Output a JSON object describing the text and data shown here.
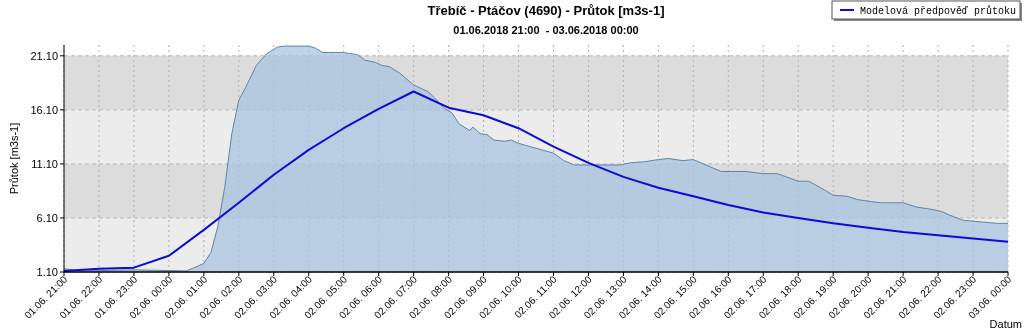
{
  "chart_data": {
    "type": "line",
    "title": "Třebíč - Ptáčov (4690) - Průtok [m3s-1]",
    "subtitle": "01.06.2018 21:00  - 03.06.2018 00:00",
    "xlabel": "Datum",
    "ylabel": "Průtok [m3s-1]",
    "xlim": [
      "2018-06-01T21:00",
      "2018-06-03T00:00"
    ],
    "ylim": [
      1.1,
      22.1
    ],
    "yticks": [
      {
        "value": 1.1,
        "label": "1.10"
      },
      {
        "value": 6.1,
        "label": "6.10"
      },
      {
        "value": 11.1,
        "label": "11.10"
      },
      {
        "value": 16.1,
        "label": "16.10"
      },
      {
        "value": 21.1,
        "label": "21.10"
      }
    ],
    "xticks": [
      {
        "value": "2018-06-01T21:00",
        "label": "01.06. 21:00"
      },
      {
        "value": "2018-06-01T22:00",
        "label": "01.06. 22:00"
      },
      {
        "value": "2018-06-01T23:00",
        "label": "01.06. 23:00"
      },
      {
        "value": "2018-06-02T00:00",
        "label": "02.06. 00:00"
      },
      {
        "value": "2018-06-02T01:00",
        "label": "02.06. 01:00"
      },
      {
        "value": "2018-06-02T02:00",
        "label": "02.06. 02:00"
      },
      {
        "value": "2018-06-02T03:00",
        "label": "02.06. 03:00"
      },
      {
        "value": "2018-06-02T04:00",
        "label": "02.06. 04:00"
      },
      {
        "value": "2018-06-02T05:00",
        "label": "02.06. 05:00"
      },
      {
        "value": "2018-06-02T06:00",
        "label": "02.06. 06:00"
      },
      {
        "value": "2018-06-02T07:00",
        "label": "02.06. 07:00"
      },
      {
        "value": "2018-06-02T08:00",
        "label": "02.06. 08:00"
      },
      {
        "value": "2018-06-02T09:00",
        "label": "02.06. 09:00"
      },
      {
        "value": "2018-06-02T10:00",
        "label": "02.06. 10:00"
      },
      {
        "value": "2018-06-02T11:00",
        "label": "02.06. 11:00"
      },
      {
        "value": "2018-06-02T12:00",
        "label": "02.06. 12:00"
      },
      {
        "value": "2018-06-02T13:00",
        "label": "02.06. 13:00"
      },
      {
        "value": "2018-06-02T14:00",
        "label": "02.06. 14:00"
      },
      {
        "value": "2018-06-02T15:00",
        "label": "02.06. 15:00"
      },
      {
        "value": "2018-06-02T16:00",
        "label": "02.06. 16:00"
      },
      {
        "value": "2018-06-02T17:00",
        "label": "02.06. 17:00"
      },
      {
        "value": "2018-06-02T18:00",
        "label": "02.06. 18:00"
      },
      {
        "value": "2018-06-02T19:00",
        "label": "02.06. 19:00"
      },
      {
        "value": "2018-06-02T20:00",
        "label": "02.06. 20:00"
      },
      {
        "value": "2018-06-02T21:00",
        "label": "02.06. 21:00"
      },
      {
        "value": "2018-06-02T22:00",
        "label": "02.06. 22:00"
      },
      {
        "value": "2018-06-02T23:00",
        "label": "02.06. 23:00"
      },
      {
        "value": "2018-06-03T00:00",
        "label": "03.06. 00:00"
      }
    ],
    "grid": true,
    "legend": "top right",
    "series": [
      {
        "type": "area",
        "color": "#a9c4e0",
        "x": [
          "2018-06-01T21:00",
          "2018-06-01T21:30",
          "2018-06-01T23:00",
          "2018-06-02T00:30",
          "2018-06-02T00:48",
          "2018-06-02T01:00",
          "2018-06-02T01:12",
          "2018-06-02T01:24",
          "2018-06-02T01:36",
          "2018-06-02T01:48",
          "2018-06-02T02:00",
          "2018-06-02T02:12",
          "2018-06-02T02:30",
          "2018-06-02T02:48",
          "2018-06-02T03:06",
          "2018-06-02T03:18",
          "2018-06-02T04:00",
          "2018-06-02T04:12",
          "2018-06-02T04:24",
          "2018-06-02T05:00",
          "2018-06-02T05:12",
          "2018-06-02T05:24",
          "2018-06-02T05:36",
          "2018-06-02T05:54",
          "2018-06-02T06:06",
          "2018-06-02T06:18",
          "2018-06-02T06:36",
          "2018-06-02T07:00",
          "2018-06-02T07:24",
          "2018-06-02T07:36",
          "2018-06-02T07:54",
          "2018-06-02T08:06",
          "2018-06-02T08:18",
          "2018-06-02T08:36",
          "2018-06-02T08:42",
          "2018-06-02T08:54",
          "2018-06-02T09:06",
          "2018-06-02T09:18",
          "2018-06-02T09:36",
          "2018-06-02T09:48",
          "2018-06-02T10:00",
          "2018-06-02T11:00",
          "2018-06-02T11:18",
          "2018-06-02T11:36",
          "2018-06-02T12:54",
          "2018-06-02T13:12",
          "2018-06-02T13:36",
          "2018-06-02T14:00",
          "2018-06-02T14:18",
          "2018-06-02T14:42",
          "2018-06-02T15:00",
          "2018-06-02T15:30",
          "2018-06-02T15:48",
          "2018-06-02T16:30",
          "2018-06-02T17:00",
          "2018-06-02T17:24",
          "2018-06-02T18:00",
          "2018-06-02T18:18",
          "2018-06-02T18:48",
          "2018-06-02T19:00",
          "2018-06-02T19:24",
          "2018-06-02T19:42",
          "2018-06-02T20:06",
          "2018-06-02T20:24",
          "2018-06-02T21:00",
          "2018-06-02T21:24",
          "2018-06-02T21:48",
          "2018-06-02T22:06",
          "2018-06-02T22:18",
          "2018-06-02T22:42",
          "2018-06-02T23:00",
          "2018-06-02T23:42",
          "2018-06-03T00:00"
        ],
        "values": [
          1.4,
          1.2,
          1.3,
          1.2,
          1.6,
          1.9,
          2.9,
          5.3,
          9.0,
          13.9,
          17.0,
          18.2,
          20.2,
          21.3,
          21.9,
          22.0,
          22.0,
          21.8,
          21.4,
          21.4,
          21.3,
          21.2,
          20.7,
          20.5,
          20.2,
          20.1,
          19.5,
          18.4,
          17.8,
          17.2,
          16.2,
          15.8,
          14.8,
          14.2,
          14.5,
          13.9,
          13.8,
          13.3,
          13.2,
          13.3,
          13.0,
          12.1,
          11.4,
          11.0,
          11.0,
          11.2,
          11.3,
          11.5,
          11.6,
          11.4,
          11.5,
          10.8,
          10.4,
          10.4,
          10.2,
          10.2,
          9.5,
          9.5,
          8.6,
          8.2,
          8.1,
          7.8,
          7.6,
          7.5,
          7.5,
          7.1,
          6.9,
          6.7,
          6.4,
          5.9,
          5.8,
          5.6,
          5.6
        ]
      },
      {
        "name": "Modelová předpověď průtoku",
        "color": "#0c0cd6",
        "x": [
          "2018-06-01T21:00",
          "2018-06-01T22:00",
          "2018-06-01T23:00",
          "2018-06-02T00:00",
          "2018-06-02T01:00",
          "2018-06-02T02:00",
          "2018-06-02T03:00",
          "2018-06-02T04:00",
          "2018-06-02T05:00",
          "2018-06-02T06:00",
          "2018-06-02T07:00",
          "2018-06-02T08:00",
          "2018-06-02T09:00",
          "2018-06-02T10:00",
          "2018-06-02T11:00",
          "2018-06-02T12:00",
          "2018-06-02T13:00",
          "2018-06-02T14:00",
          "2018-06-02T15:00",
          "2018-06-02T16:00",
          "2018-06-02T17:00",
          "2018-06-02T18:00",
          "2018-06-02T19:00",
          "2018-06-02T20:00",
          "2018-06-02T21:00",
          "2018-06-02T22:00",
          "2018-06-02T23:00",
          "2018-06-03T00:00"
        ],
        "values": [
          1.2,
          1.4,
          1.5,
          2.6,
          5.0,
          7.5,
          10.1,
          12.4,
          14.4,
          16.2,
          17.8,
          16.3,
          15.6,
          14.4,
          12.7,
          11.2,
          9.9,
          8.9,
          8.1,
          7.3,
          6.6,
          6.1,
          5.6,
          5.2,
          4.8,
          4.5,
          4.2,
          3.9
        ]
      }
    ]
  }
}
